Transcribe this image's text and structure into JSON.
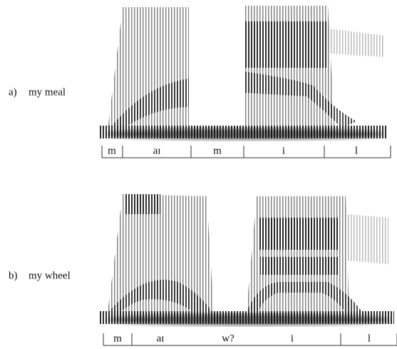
{
  "panels": [
    {
      "letter": "a)",
      "phrase": "my meal",
      "segments": [
        "m",
        "aɪ",
        "m",
        "i",
        "l"
      ]
    },
    {
      "letter": "b)",
      "phrase": "my wheel",
      "segments": [
        "m",
        "aɪ",
        "w?",
        "i",
        "l"
      ]
    }
  ]
}
